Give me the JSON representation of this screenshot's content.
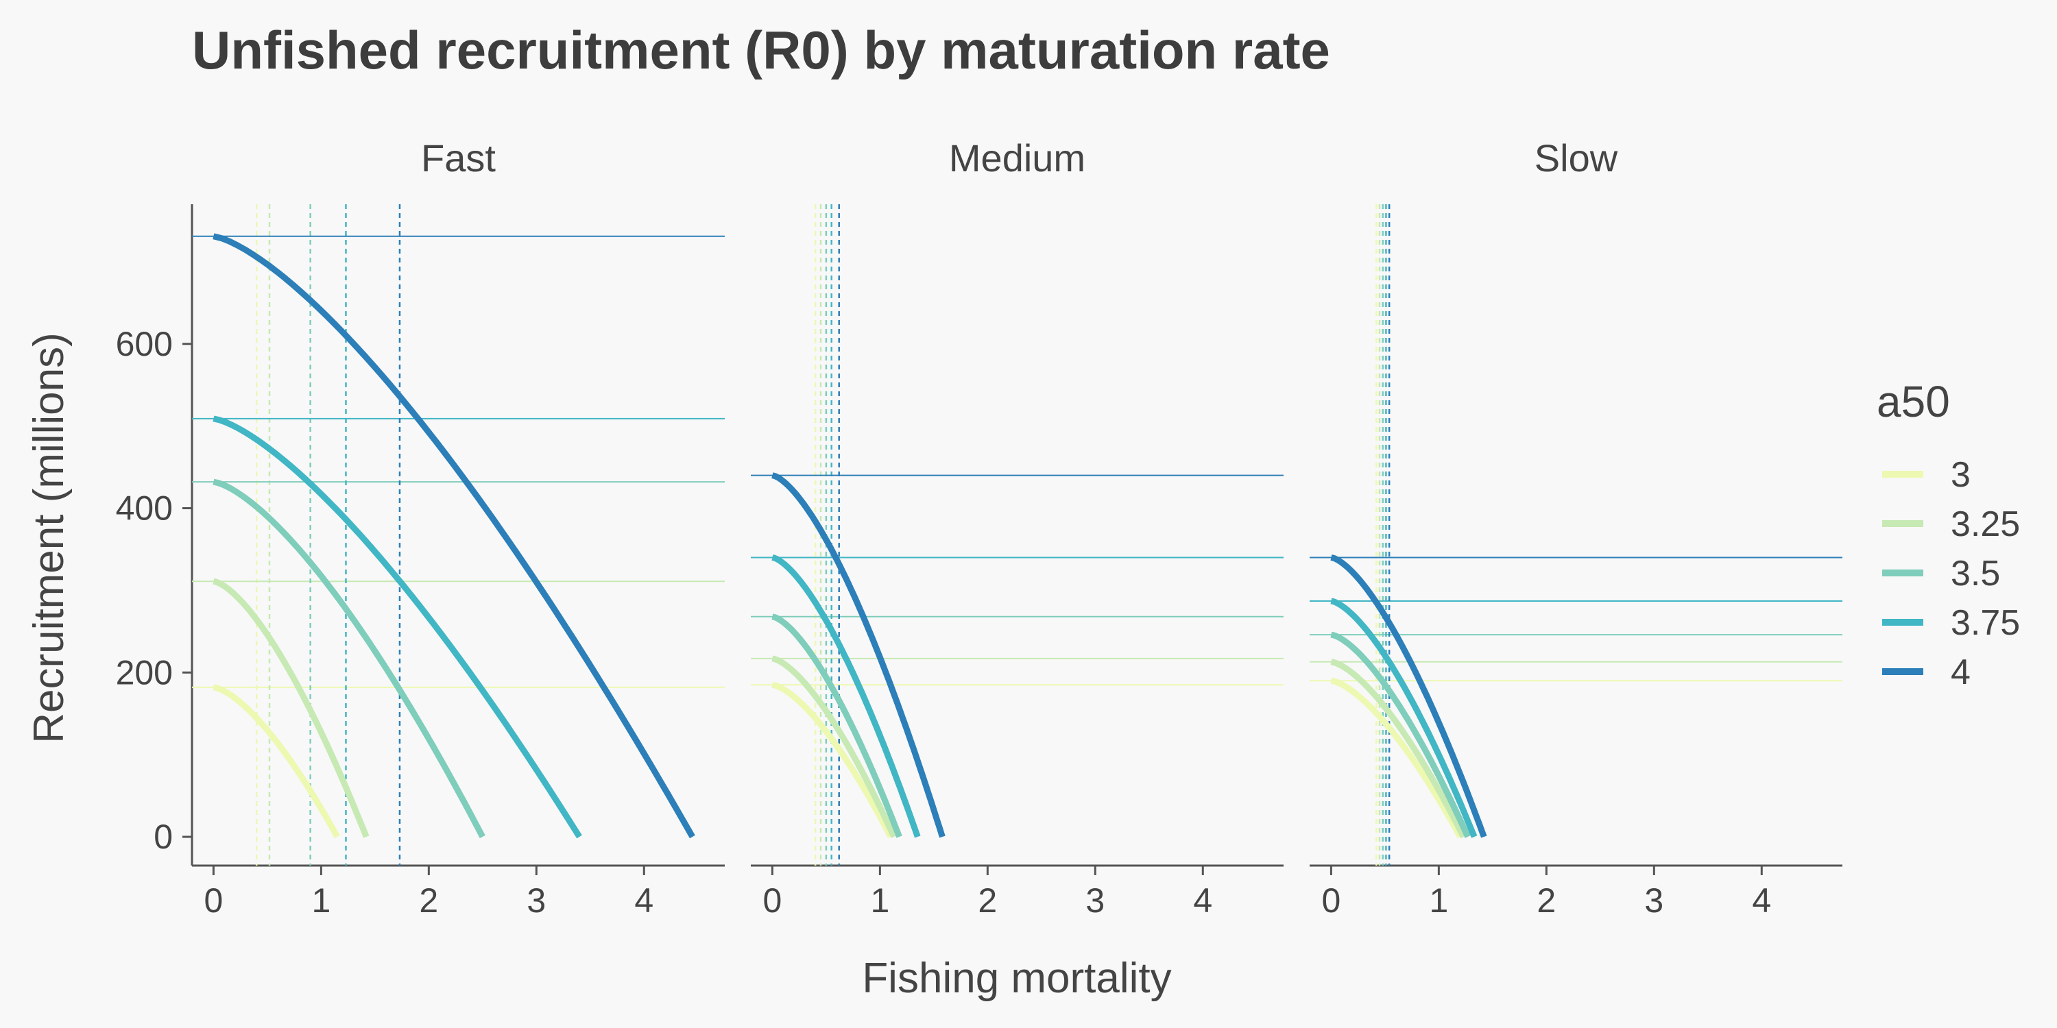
{
  "chart_data": {
    "type": "line",
    "title": "Unfished recruitment (R0) by maturation rate",
    "xlabel": "Fishing mortality",
    "ylabel": "Recruitment (millions)",
    "xlim": [
      -0.2,
      4.75
    ],
    "ylim": [
      -35,
      770
    ],
    "x_ticks": [
      0,
      1,
      2,
      3,
      4
    ],
    "y_ticks": [
      0,
      200,
      400,
      600
    ],
    "legend": {
      "title": "a50",
      "position": "right"
    },
    "series_colors": {
      "3": "#edf8b1",
      "3.25": "#c7e9b4",
      "3.5": "#7fcdbb",
      "3.75": "#41b6c4",
      "4": "#2c7fb8"
    },
    "series_names": [
      "3",
      "3.25",
      "3.5",
      "3.75",
      "4"
    ],
    "panels": [
      {
        "name": "Fast",
        "series": [
          {
            "name": "3",
            "r0": 182,
            "fmax": 1.15,
            "vline": 0.4,
            "shape": 1.5
          },
          {
            "name": "3.25",
            "r0": 311,
            "fmax": 1.42,
            "vline": 0.52,
            "shape": 1.5
          },
          {
            "name": "3.5",
            "r0": 432,
            "fmax": 2.5,
            "vline": 0.9,
            "shape": 1.45
          },
          {
            "name": "3.75",
            "r0": 509,
            "fmax": 3.4,
            "vline": 1.23,
            "shape": 1.4
          },
          {
            "name": "4",
            "r0": 731,
            "fmax": 4.45,
            "vline": 1.73,
            "shape": 1.4
          }
        ]
      },
      {
        "name": "Medium",
        "series": [
          {
            "name": "3",
            "r0": 185,
            "fmax": 1.1,
            "vline": 0.4,
            "shape": 1.5
          },
          {
            "name": "3.25",
            "r0": 217,
            "fmax": 1.13,
            "vline": 0.45,
            "shape": 1.5
          },
          {
            "name": "3.5",
            "r0": 268,
            "fmax": 1.18,
            "vline": 0.5,
            "shape": 1.5
          },
          {
            "name": "3.75",
            "r0": 340,
            "fmax": 1.35,
            "vline": 0.55,
            "shape": 1.5
          },
          {
            "name": "4",
            "r0": 440,
            "fmax": 1.58,
            "vline": 0.62,
            "shape": 1.5
          }
        ]
      },
      {
        "name": "Slow",
        "series": [
          {
            "name": "3",
            "r0": 190,
            "fmax": 1.2,
            "vline": 0.42,
            "shape": 1.5
          },
          {
            "name": "3.25",
            "r0": 213,
            "fmax": 1.23,
            "vline": 0.45,
            "shape": 1.5
          },
          {
            "name": "3.5",
            "r0": 246,
            "fmax": 1.27,
            "vline": 0.48,
            "shape": 1.5
          },
          {
            "name": "3.75",
            "r0": 287,
            "fmax": 1.33,
            "vline": 0.51,
            "shape": 1.5
          },
          {
            "name": "4",
            "r0": 340,
            "fmax": 1.42,
            "vline": 0.54,
            "shape": 1.5
          }
        ]
      }
    ]
  }
}
